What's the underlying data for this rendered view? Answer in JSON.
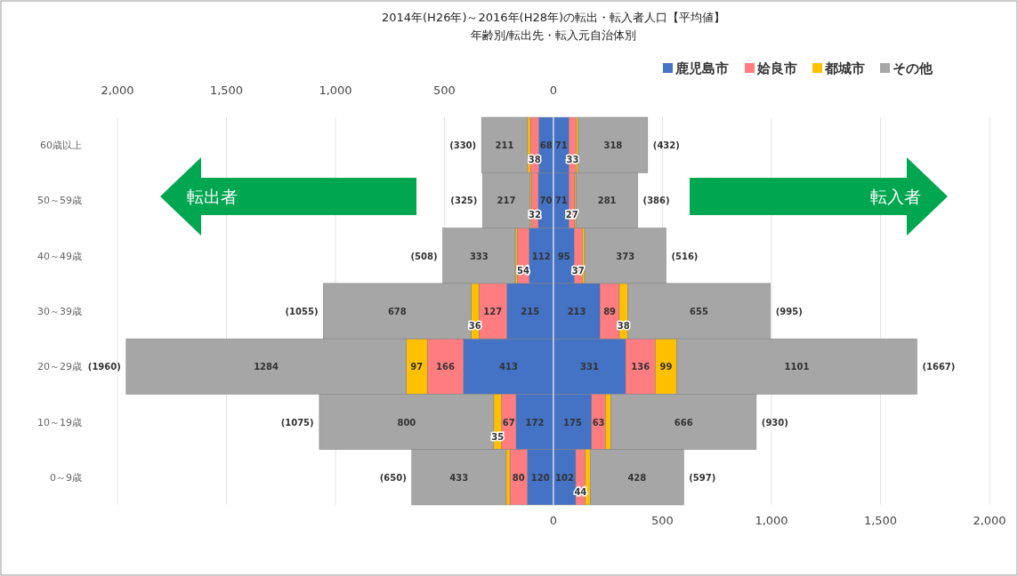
{
  "chart_data": [
    {
      "type": "bar",
      "orientation": "horizontal",
      "stacked": true,
      "title": "2014年(H26年)～2016年(H28年)の転出・転入者人口【平均値】",
      "subtitle": "年齢別/転出先・転入元自治体別",
      "categories": [
        "60歳以上",
        "50～59歳",
        "40～49歳",
        "30～39歳",
        "20～29歳",
        "10～19歳",
        "0～9歳"
      ],
      "series": [
        {
          "color": "#4472c4",
          "values": [
            68,
            70,
            112,
            215,
            413,
            172,
            120
          ],
          "value_labels": [
            "68",
            "70",
            "112",
            "215",
            "413",
            "172",
            "120"
          ]
        },
        {
          "color": "#ff7c80",
          "values": [
            38,
            32,
            54,
            127,
            166,
            67,
            80
          ],
          "value_labels": [
            "38",
            "32",
            "54",
            "127",
            "166",
            "67",
            "80"
          ]
        },
        {
          "color": "#ffc000",
          "values": [
            13,
            6,
            9,
            36,
            97,
            35,
            17
          ],
          "value_labels": [
            null,
            null,
            null,
            "36",
            "97",
            "35",
            null
          ]
        },
        {
          "color": "#a6a6a6",
          "values": [
            211,
            217,
            333,
            678,
            1284,
            800,
            433
          ],
          "value_labels": [
            "211",
            "217",
            "333",
            "678",
            "1284",
            "800",
            "433"
          ]
        }
      ],
      "x2lim": [
        2000,
        0
      ],
      "x2ticks": [
        {
          "value": 2000,
          "label": "2,000"
        },
        {
          "value": 1500,
          "label": "1,500"
        },
        {
          "value": 1000,
          "label": "1,000"
        },
        500,
        0
      ],
      "grid": "x",
      "annotations": [
        {
          "text": "(330)",
          "x": 330,
          "y": "60歳以上"
        },
        {
          "text": "(325)",
          "x": 325,
          "y": "50～59歳"
        },
        {
          "text": "(508)",
          "x": 508,
          "y": "40～49歳"
        },
        {
          "text": "(1055)",
          "x": 1055,
          "y": "30～39歳"
        },
        {
          "text": "(1960)",
          "x": 1960,
          "y": "20～29歳"
        },
        {
          "text": "(1075)",
          "x": 1075,
          "y": "10～19歳"
        },
        {
          "text": "(650)",
          "x": 650,
          "y": "0～9歳"
        },
        "転出者"
      ]
    },
    {
      "type": "bar",
      "orientation": "horizontal",
      "stacked": true,
      "categories": [
        "60歳以上",
        "50～59歳",
        "40～49歳",
        "30～39歳",
        "20～29歳",
        "10～19歳",
        "0～9歳"
      ],
      "tick_labels": "x",
      "series": [
        {
          "name": "鹿児島市",
          "color": "#4472c4",
          "values": [
            71,
            71,
            95,
            213,
            331,
            175,
            102
          ],
          "value_labels": [
            "71",
            "71",
            "95",
            "213",
            "331",
            "175",
            "102"
          ]
        },
        {
          "name": "姶良市",
          "color": "#ff7c80",
          "values": [
            33,
            27,
            37,
            89,
            136,
            63,
            44
          ],
          "value_labels": [
            "33",
            "27",
            "37",
            "89",
            "136",
            "63",
            "44"
          ]
        },
        {
          "name": "都城市",
          "color": "#ffc000",
          "values": [
            10,
            7,
            11,
            38,
            99,
            26,
            23
          ],
          "value_labels": [
            null,
            null,
            null,
            "38",
            "99",
            null,
            null
          ]
        },
        {
          "name": "その他",
          "color": "#a6a6a6",
          "values": [
            318,
            281,
            373,
            655,
            1101,
            666,
            428
          ],
          "value_labels": [
            "318",
            "281",
            "373",
            "655",
            "1101",
            "666",
            "428"
          ]
        }
      ],
      "xlim": [
        0,
        2000
      ],
      "xticks": [
        0,
        500,
        {
          "value": 1000,
          "label": "1,000"
        },
        {
          "value": 1500,
          "label": "1,500"
        },
        {
          "value": 2000,
          "label": "2,000"
        }
      ],
      "grid": "x",
      "legend": "top right",
      "annotations": [
        {
          "text": "(432)",
          "x": 432,
          "y": "60歳以上"
        },
        {
          "text": "(386)",
          "x": 386,
          "y": "50～59歳"
        },
        {
          "text": "(516)",
          "x": 516,
          "y": "40～49歳"
        },
        {
          "text": "(995)",
          "x": 995,
          "y": "30～39歳"
        },
        {
          "text": "(1667)",
          "x": 1667,
          "y": "20～29歳"
        },
        {
          "text": "(930)",
          "x": 930,
          "y": "10～19歳"
        },
        {
          "text": "(597)",
          "x": 597,
          "y": "0～9歳"
        },
        "転入者"
      ]
    }
  ]
}
